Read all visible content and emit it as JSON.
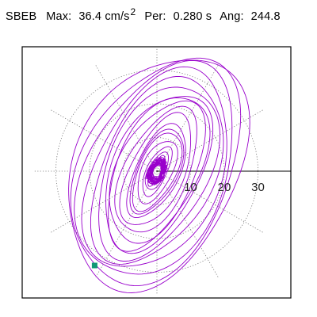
{
  "header": {
    "station": "SBEB",
    "max_label": "Max:",
    "max_value": "36.4 cm/s",
    "max_exp": "2",
    "per_label": "Per:",
    "per_value": "0.280 s",
    "ang_label": "Ang:",
    "ang_value": "244.8"
  },
  "chart_data": {
    "type": "line",
    "plot_kind": "particle-motion orbit (polar)",
    "tick_labels": [
      "10",
      "20",
      "30"
    ],
    "radial_rings": [
      10,
      20,
      30
    ],
    "radial_spokes_deg": [
      30,
      60,
      90,
      120,
      150,
      180,
      210,
      240,
      270,
      300,
      330
    ],
    "r_max": 36.4,
    "max_amplitude": 36.4,
    "max_amplitude_units": "cm/s²",
    "period_s": 0.28,
    "angle_deg": 244.8,
    "series": [
      {
        "color": "#9900cc",
        "major_axis_deg": 244.8,
        "orbit_semi_axes": [
          [
            5,
            1.5
          ],
          [
            4.2,
            1.8
          ],
          [
            6,
            2.5
          ],
          [
            8,
            3
          ],
          [
            10,
            4.5
          ],
          [
            12.5,
            5.5
          ],
          [
            15,
            6.5
          ],
          [
            18,
            8
          ],
          [
            20,
            9.5
          ],
          [
            22.5,
            11.5
          ],
          [
            25,
            13
          ],
          [
            27.5,
            15
          ],
          [
            29.5,
            16.5
          ],
          [
            31.5,
            18.5
          ],
          [
            33.5,
            20.5
          ],
          [
            35.5,
            22
          ],
          [
            36.4,
            24
          ],
          [
            24.5,
            12
          ],
          [
            13.5,
            6
          ]
        ],
        "core_scribble_radius": 3.2,
        "end_marker": {
          "x": -18.5,
          "y": -28.0,
          "color": "#119977"
        }
      }
    ],
    "grid": true,
    "grid_style": "dotted polar rings and spokes"
  }
}
